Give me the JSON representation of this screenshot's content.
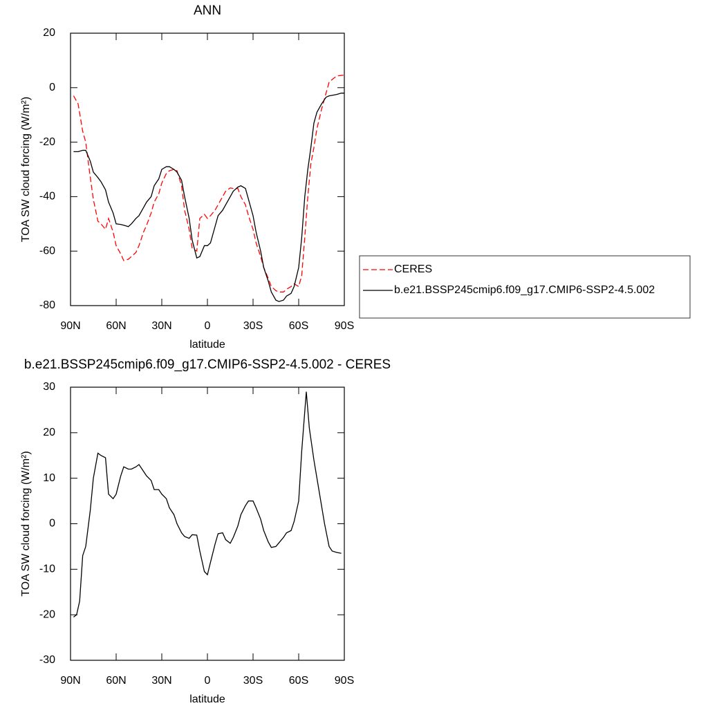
{
  "chart_data": [
    {
      "type": "line",
      "title": "ANN",
      "xlabel": "latitude",
      "ylabel": "TOA SW cloud forcing (W/m²)",
      "x": [
        88,
        85,
        82,
        80,
        77,
        75,
        72,
        70,
        67,
        65,
        62,
        60,
        57,
        55,
        52,
        50,
        47,
        45,
        42,
        40,
        37,
        35,
        32,
        30,
        27,
        25,
        22,
        20,
        17,
        15,
        12,
        10,
        7,
        5,
        2,
        0,
        -2,
        -5,
        -7,
        -10,
        -12,
        -15,
        -17,
        -20,
        -22,
        -25,
        -27,
        -30,
        -32,
        -35,
        -37,
        -40,
        -42,
        -45,
        -47,
        -50,
        -52,
        -55,
        -57,
        -60,
        -62,
        -64,
        -66,
        -68,
        -70,
        -72,
        -75,
        -78,
        -80,
        -82,
        -85,
        -88,
        -90
      ],
      "series": [
        {
          "name": "CERES",
          "color": "#ff0000",
          "dashed": true,
          "values": [
            -3,
            -6,
            -16,
            -20,
            -33,
            -41,
            -49,
            -50,
            -52,
            -48,
            -53,
            -58,
            -61,
            -63.5,
            -63,
            -62,
            -60.5,
            -58,
            -53,
            -50.5,
            -46,
            -42,
            -39,
            -35,
            -31.5,
            -30.5,
            -30,
            -30.5,
            -36,
            -45,
            -52,
            -59,
            -60,
            -48,
            -46.5,
            -48,
            -47,
            -45,
            -43,
            -40,
            -38,
            -36.8,
            -37,
            -37,
            -40,
            -43,
            -47,
            -52,
            -57,
            -62,
            -66,
            -70,
            -73,
            -74.5,
            -75,
            -75,
            -74,
            -73,
            -72,
            -73,
            -69,
            -55,
            -40,
            -28,
            -22,
            -15,
            -8,
            -2,
            2,
            3,
            4.3,
            4.5,
            4.6
          ]
        },
        {
          "name": "b.e21.BSSP245cmip6.f09_g17.CMIP6-SSP2-4.5.002",
          "color": "#000000",
          "dashed": false,
          "values": [
            -23.5,
            -23.5,
            -23,
            -23,
            -27,
            -31,
            -33,
            -34.5,
            -37.5,
            -42,
            -46,
            -50,
            -50.2,
            -50.5,
            -51,
            -50,
            -48,
            -47,
            -44,
            -42,
            -40,
            -36,
            -33.5,
            -30,
            -29,
            -29,
            -30,
            -31,
            -34,
            -40,
            -48,
            -56,
            -62.5,
            -62,
            -58,
            -58,
            -57,
            -51,
            -47,
            -45,
            -43,
            -40,
            -38,
            -36.5,
            -36,
            -37,
            -41,
            -47,
            -53,
            -60,
            -66,
            -71,
            -75,
            -78,
            -78.5,
            -78,
            -76.5,
            -75.5,
            -73,
            -66,
            -55,
            -40,
            -30,
            -22,
            -13,
            -9,
            -6,
            -3.5,
            -3,
            -2.8,
            -2.5,
            -2,
            -2
          ]
        }
      ],
      "xlim": [
        90,
        -90
      ],
      "xticks": [
        {
          "value": 90,
          "label": "90N"
        },
        {
          "value": 60,
          "label": "60N"
        },
        {
          "value": 30,
          "label": "30N"
        },
        0,
        {
          "value": -30,
          "label": "30S"
        },
        {
          "value": -60,
          "label": "60S"
        },
        {
          "value": -90,
          "label": "90S"
        }
      ],
      "ylim": [
        -80,
        20
      ],
      "yticks": [
        20,
        0,
        -20,
        -40,
        -60,
        -80
      ],
      "legend": "right"
    },
    {
      "type": "line",
      "title": "b.e21.BSSP245cmip6.f09_g17.CMIP6-SSP2-4.5.002 - CERES",
      "xlabel": "latitude",
      "ylabel": "TOA SW cloud forcing (W/m²)",
      "x": [
        88,
        86,
        84,
        82,
        80,
        77,
        75,
        72,
        70,
        67,
        65,
        62,
        60,
        57,
        55,
        52,
        50,
        47,
        45,
        42,
        40,
        37,
        35,
        32,
        30,
        27,
        25,
        22,
        20,
        17,
        15,
        12,
        10,
        7,
        5,
        2,
        0,
        -2,
        -5,
        -7,
        -10,
        -12,
        -15,
        -17,
        -20,
        -22,
        -25,
        -27,
        -30,
        -32,
        -35,
        -37,
        -40,
        -42,
        -45,
        -47,
        -50,
        -52,
        -55,
        -57,
        -60,
        -62,
        -65,
        -67,
        -70,
        -72,
        -75,
        -77,
        -80,
        -82,
        -85,
        -88
      ],
      "series": [
        {
          "color": "#000000",
          "dashed": false,
          "values": [
            -20.5,
            -20,
            -17,
            -7,
            -5,
            3,
            10,
            15.5,
            15,
            14.5,
            6.5,
            5.5,
            6.5,
            10.5,
            12.5,
            12,
            12,
            12.5,
            13,
            11.5,
            10.5,
            9.5,
            7.5,
            7.5,
            6.5,
            5.5,
            3.5,
            2,
            0,
            -2,
            -2.8,
            -3.2,
            -2.4,
            -2.5,
            -6,
            -10.5,
            -11.2,
            -8.5,
            -4.5,
            -2.2,
            -2,
            -3.5,
            -4.3,
            -3,
            -0.5,
            2,
            4,
            5,
            5,
            3.5,
            1,
            -1.5,
            -4,
            -5.2,
            -5,
            -4.2,
            -3,
            -2,
            -1.5,
            0.5,
            5,
            16,
            29,
            21,
            14,
            10,
            4,
            0,
            -5,
            -6,
            -6.3,
            -6.5
          ]
        }
      ],
      "xlim": [
        90,
        -90
      ],
      "xticks": [
        {
          "value": 90,
          "label": "90N"
        },
        {
          "value": 60,
          "label": "60N"
        },
        {
          "value": 30,
          "label": "30N"
        },
        0,
        {
          "value": -30,
          "label": "30S"
        },
        {
          "value": -60,
          "label": "60S"
        },
        {
          "value": -90,
          "label": "90S"
        }
      ],
      "ylim": [
        -30,
        30
      ],
      "yticks": [
        30,
        20,
        10,
        0,
        -10,
        -20,
        -30
      ]
    }
  ]
}
